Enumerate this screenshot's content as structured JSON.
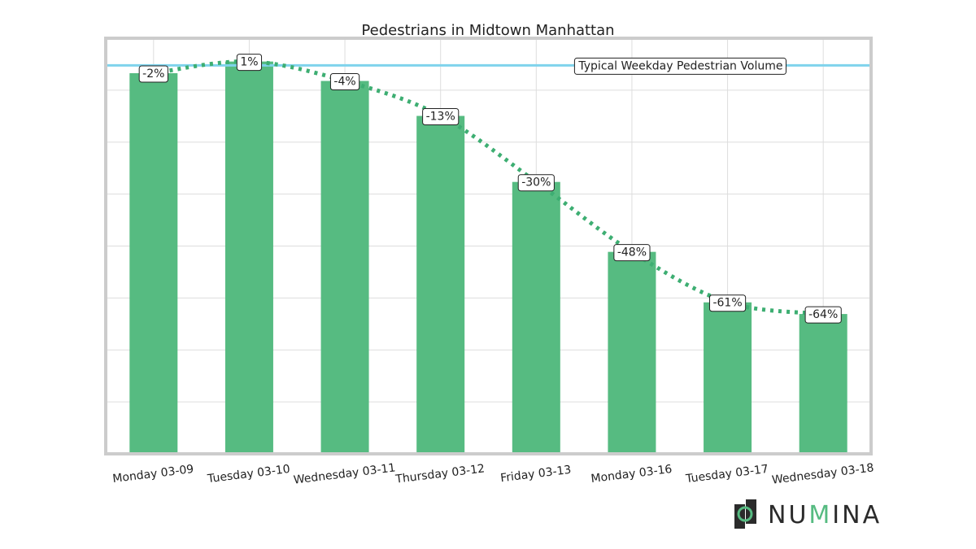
{
  "chart_data": {
    "type": "bar",
    "title": "Pedestrians in Midtown Manhattan",
    "xlabel": "",
    "ylabel": "",
    "categories": [
      "Monday 03-09",
      "Tuesday 03-10",
      "Wednesday 03-11",
      "Thursday 03-12",
      "Friday 03-13",
      "Monday 03-16",
      "Tuesday 03-17",
      "Wednesday 03-18"
    ],
    "values": [
      98,
      101,
      96,
      87,
      70,
      52,
      39,
      36
    ],
    "data_labels": [
      "-2%",
      "1%",
      "-4%",
      "-13%",
      "-30%",
      "-48%",
      "-61%",
      "-64%"
    ],
    "ylim": [
      0,
      107
    ],
    "y_tick_labels_shown": false,
    "grid": true,
    "reference_line": {
      "value": 100,
      "label": "Typical Weekday Pedestrian Volume",
      "color": "#7fd3ec"
    },
    "trend_line": {
      "style": "dotted",
      "color": "#3dae72"
    },
    "bar_color": "#56bb81",
    "frame_color": "#cccccc",
    "grid_color": "#dddddd"
  },
  "brand": {
    "logo_icon": "numina-mark-icon",
    "logo_parts": [
      "NU",
      "M",
      "INA"
    ],
    "dark_color": "#2b2b2b",
    "accent_color": "#56bb81"
  }
}
